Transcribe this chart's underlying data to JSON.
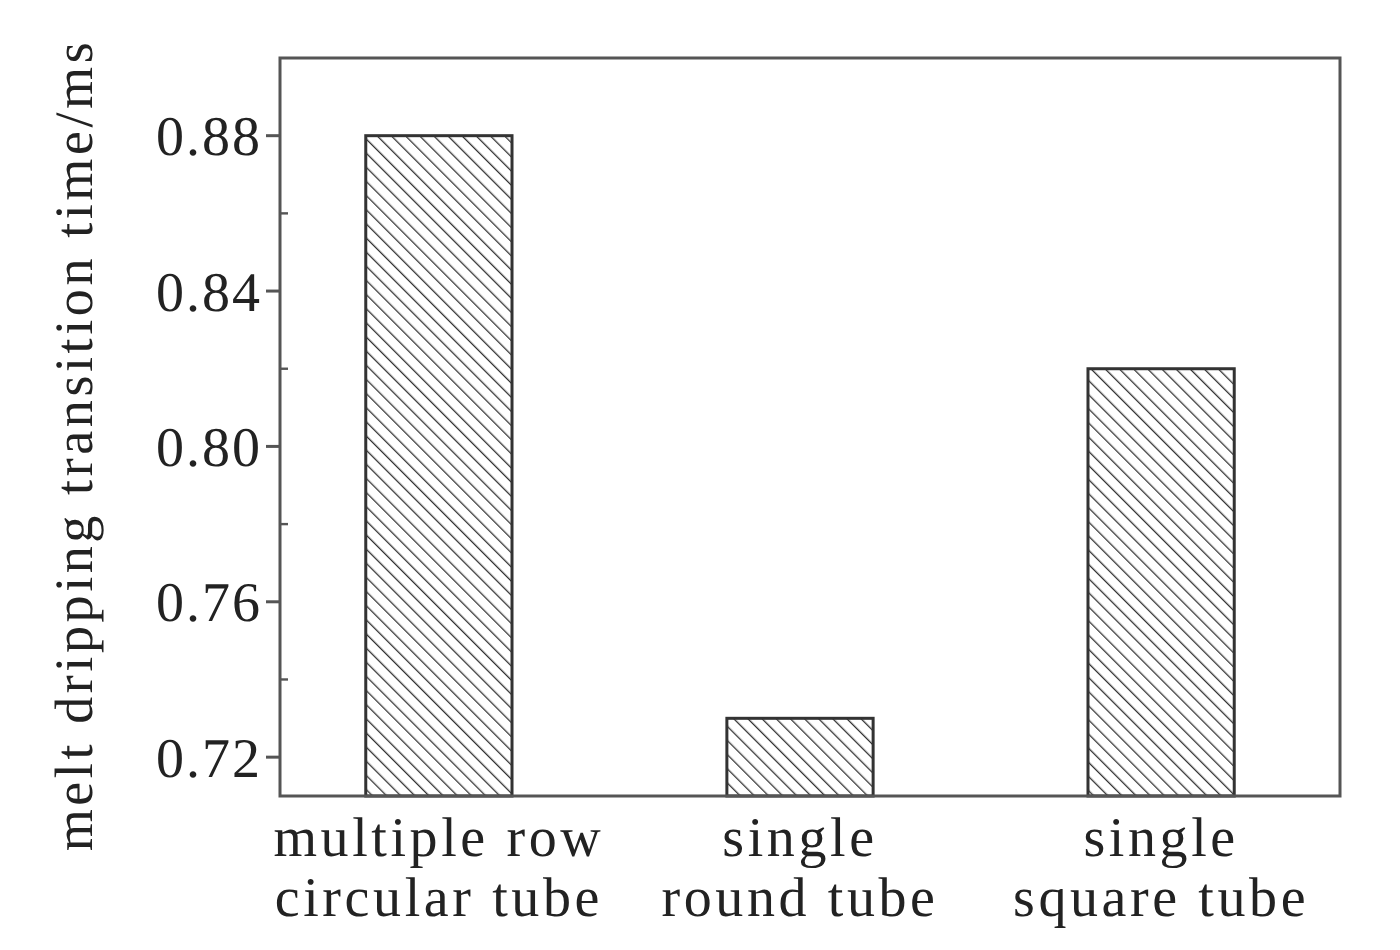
{
  "chart_data": {
    "type": "bar",
    "ylabel": "melt dripping transition time/ms",
    "categories": [
      "multiple row\ncircular tube",
      "single\nround tube",
      "single\nsquare tube"
    ],
    "values": [
      0.88,
      0.73,
      0.82
    ],
    "color": "#333333",
    "ylim": [
      0.71,
      0.9
    ],
    "yticks": [
      {
        "value": 0.72,
        "label": "0.72"
      },
      {
        "value": 0.74,
        "label": null
      },
      {
        "value": 0.76,
        "label": "0.76"
      },
      {
        "value": 0.78,
        "label": null
      },
      {
        "value": 0.8,
        "label": "0.80"
      },
      {
        "value": 0.82,
        "label": null
      },
      {
        "value": 0.84,
        "label": "0.84"
      },
      {
        "value": 0.86,
        "label": null
      },
      {
        "value": 0.88,
        "label": "0.88"
      }
    ],
    "grid": false
  }
}
